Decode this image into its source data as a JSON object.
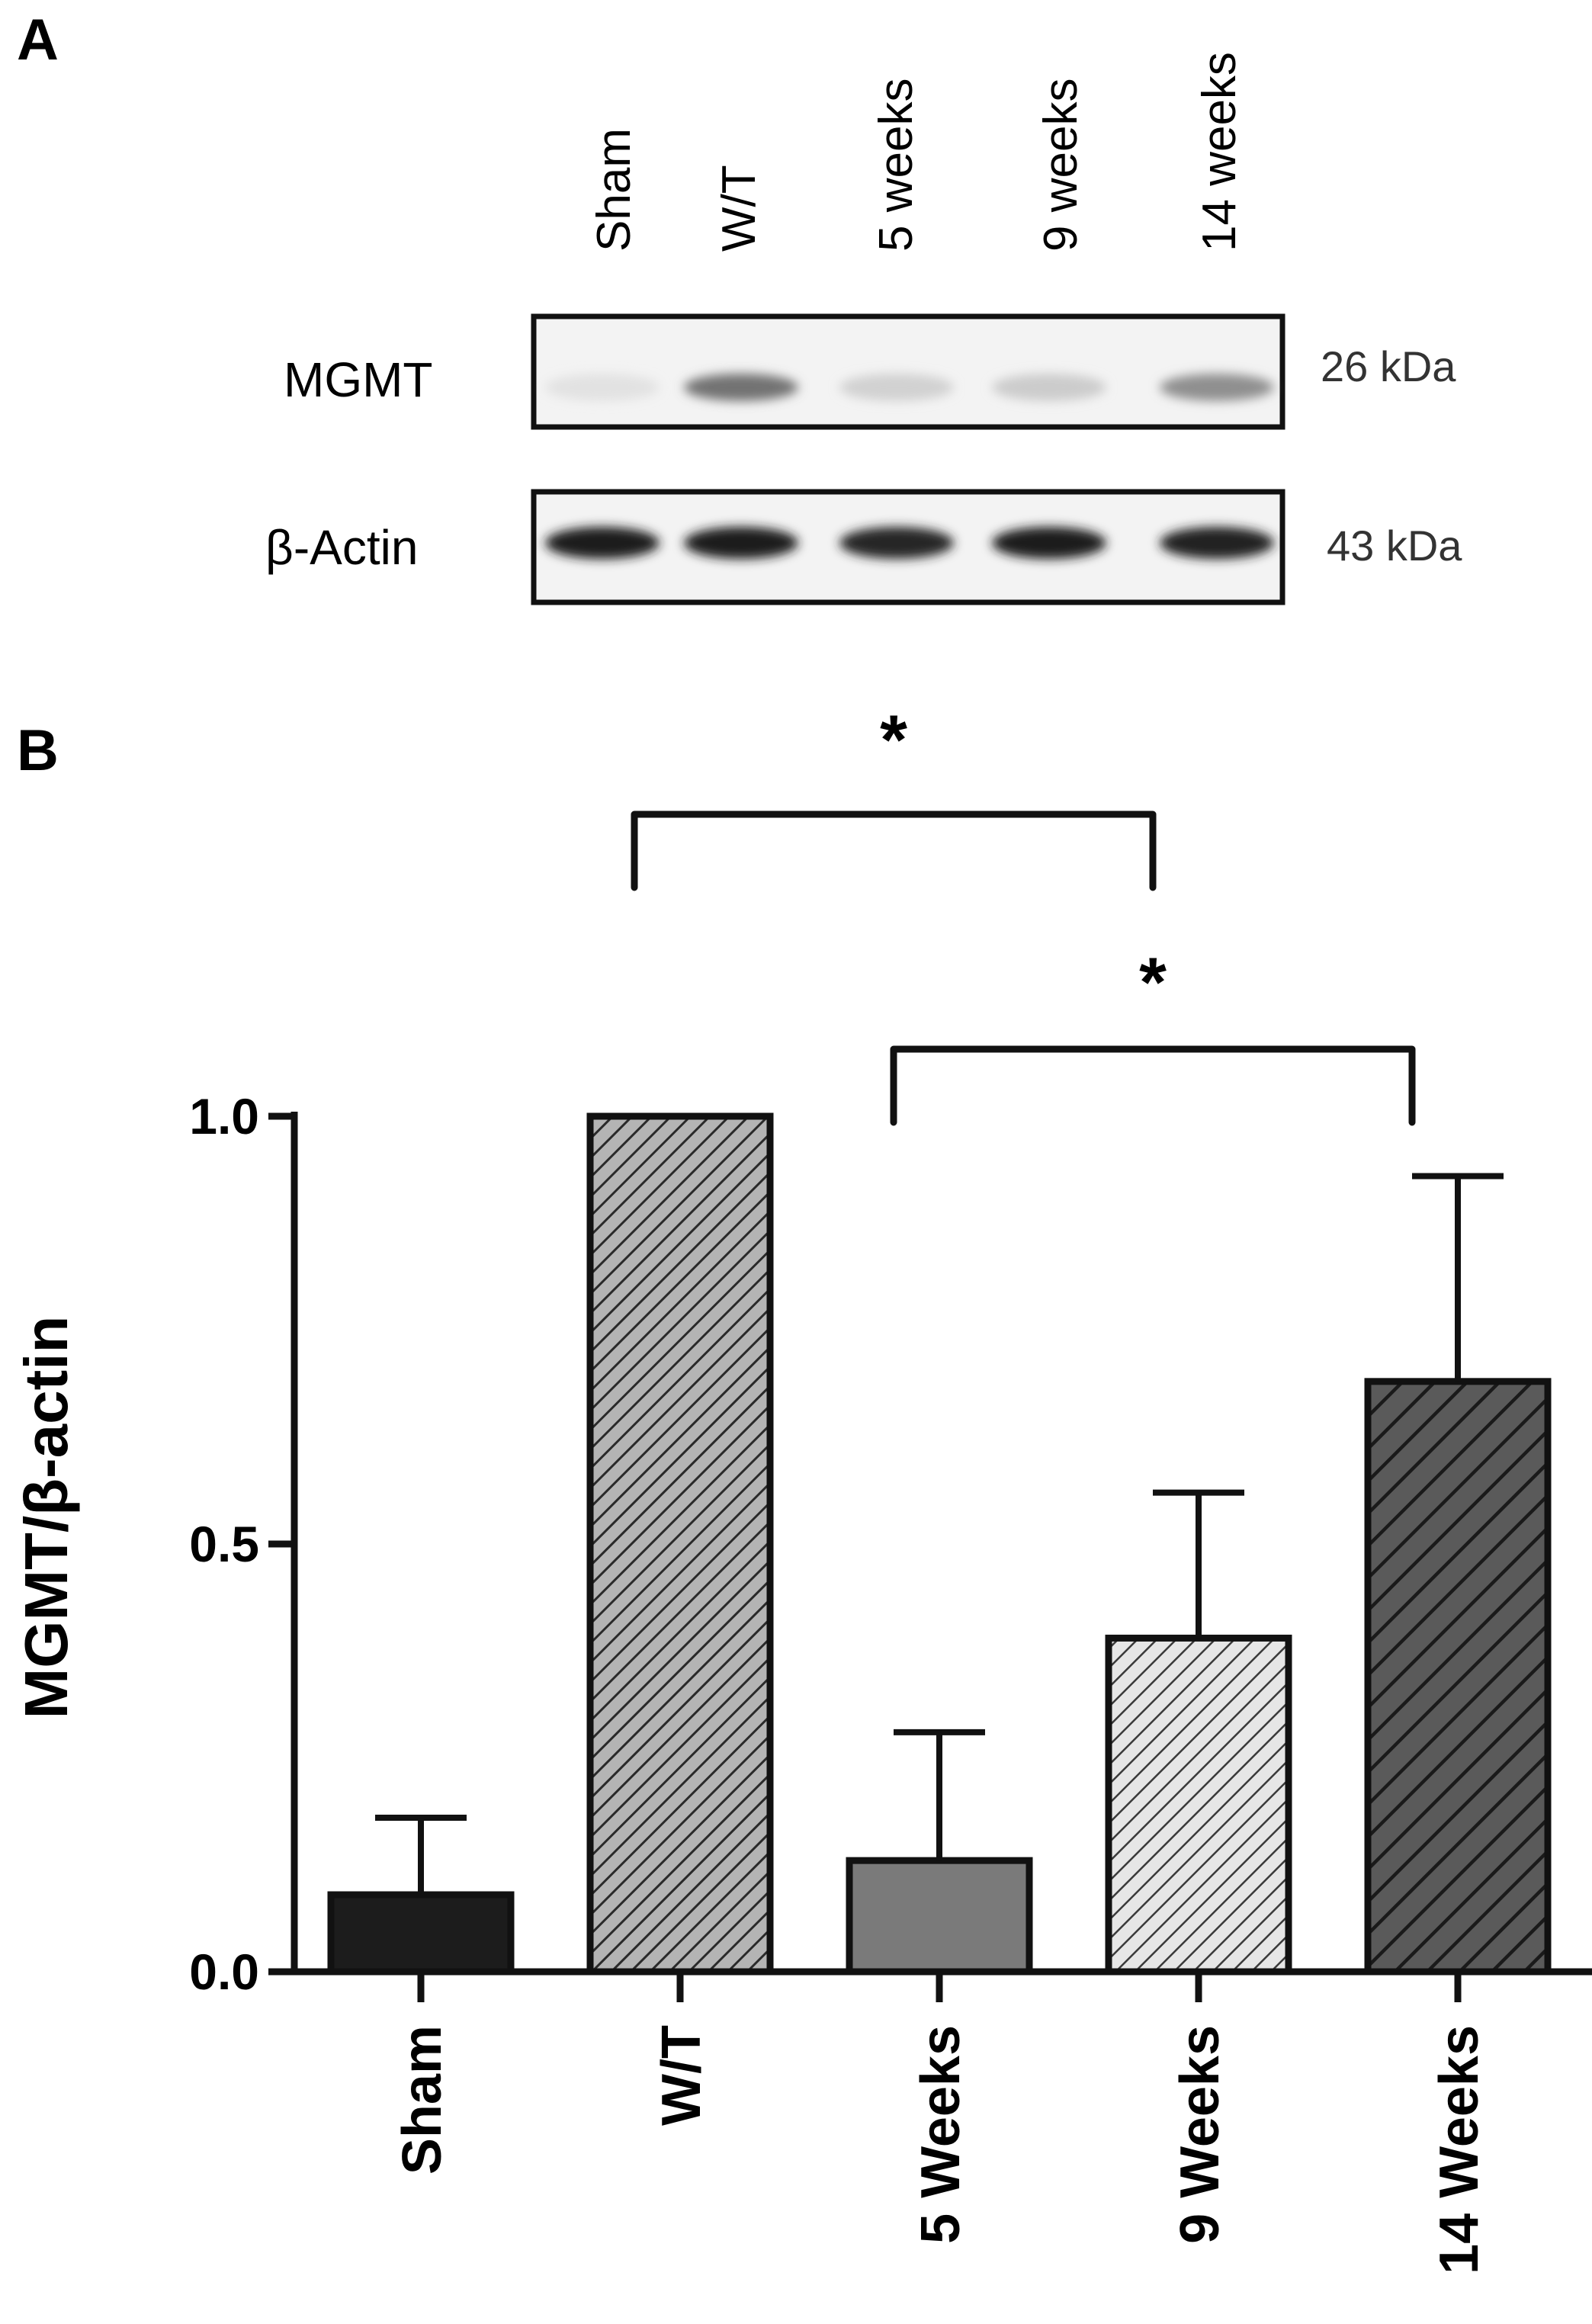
{
  "panel_a": {
    "label": "A",
    "lanes": [
      "Sham",
      "W/T",
      "5 weeks",
      "9 weeks",
      "14 weeks"
    ],
    "blots": [
      {
        "name": "MGMT",
        "size": "26 kDa",
        "band_intensity": [
          0.04,
          0.55,
          0.12,
          0.14,
          0.42
        ]
      },
      {
        "name": "β-Actin",
        "size": "43 kDa",
        "band_intensity": [
          0.95,
          0.95,
          0.9,
          0.95,
          0.92
        ]
      }
    ]
  },
  "panel_b": {
    "label": "B"
  },
  "chart_data": {
    "type": "bar",
    "title": "",
    "xlabel": "",
    "ylabel": "MGMT/β-actin",
    "ylim": [
      0,
      1.0
    ],
    "yticks": [
      "0.0",
      "0.5",
      "1.0"
    ],
    "ytick_values": [
      0.0,
      0.5,
      1.0
    ],
    "categories": [
      "Sham",
      "W/T",
      "5 Weeks",
      "9 Weeks",
      "14 Weeks"
    ],
    "values": [
      0.09,
      1.0,
      0.13,
      0.39,
      0.69
    ],
    "errors": [
      0.09,
      0.0,
      0.15,
      0.17,
      0.24
    ],
    "bar_styles": [
      "solid",
      "hatch",
      "solid",
      "hatch",
      "hatch"
    ],
    "bar_colors": [
      "#1c1c1c",
      "#9a9a9a",
      "#7a7a7a",
      "#c8c8c8",
      "#595959"
    ],
    "significance": [
      {
        "from": "W/T",
        "to": "9 Weeks",
        "label": "*"
      },
      {
        "from": "5 Weeks",
        "to": "14 Weeks",
        "label": "*"
      }
    ],
    "grid": false,
    "legend": "none"
  }
}
